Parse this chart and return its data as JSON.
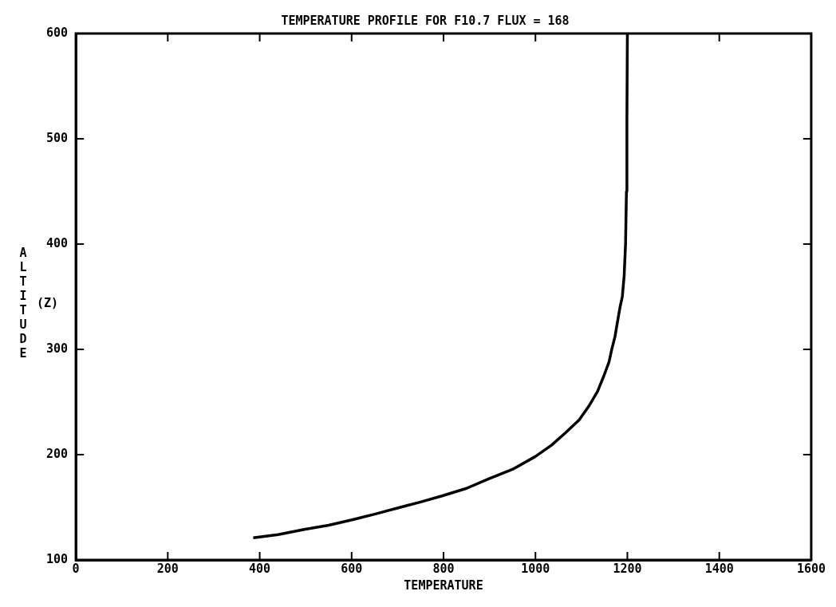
{
  "chart_data": {
    "type": "line",
    "title": "TEMPERATURE PROFILE FOR F10.7 FLUX = 168",
    "xlabel": "TEMPERATURE",
    "ylabel": "ALTITUDE (Z)",
    "x": [
      386,
      440,
      497,
      550,
      606,
      655,
      706,
      750,
      798,
      850,
      898,
      950,
      999,
      1035,
      1066,
      1095,
      1116,
      1135,
      1149,
      1160,
      1166,
      1173,
      1178,
      1184,
      1189,
      1193,
      1196,
      1198,
      1199,
      1200
    ],
    "series": [
      {
        "color": "#000000",
        "values": [
          121,
          124,
          129,
          133,
          138.6,
          144,
          150,
          155,
          161,
          168,
          177,
          186,
          198,
          209,
          221,
          233,
          246,
          260,
          275,
          288,
          300,
          312,
          325,
          340,
          350,
          370,
          400,
          450,
          520,
          600
        ]
      }
    ],
    "xlim": [
      0,
      1600
    ],
    "xticks": [
      {
        "value": 0,
        "label": "0"
      },
      200,
      400,
      600,
      800,
      1000,
      1200,
      1400,
      1600
    ],
    "ylim": [
      100,
      600
    ],
    "yticks": [
      100,
      200,
      300,
      400,
      500,
      600
    ],
    "grid": false,
    "legend": false,
    "marker": "none",
    "line_style": "solid"
  }
}
